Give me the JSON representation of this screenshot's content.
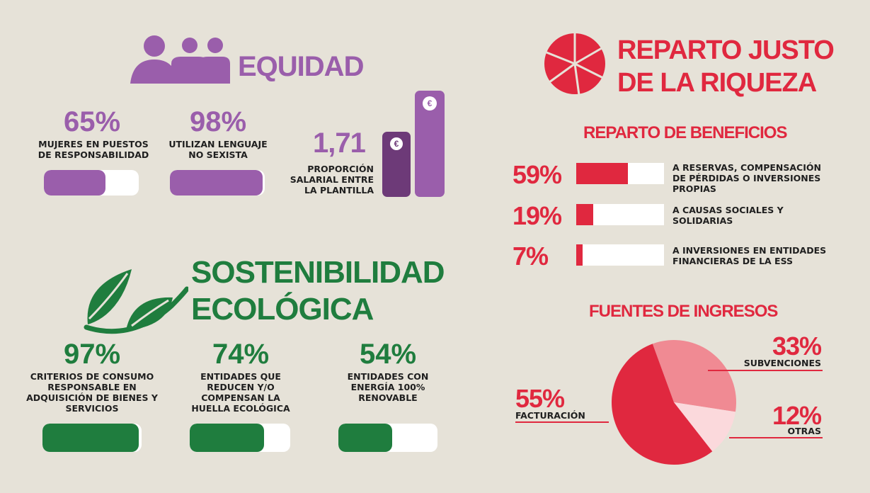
{
  "colors": {
    "equidad": "#9a5eab",
    "equidad_dark": "#6d3a78",
    "sostenibilidad": "#1f7d3e",
    "reparto": "#e0283f",
    "reparto_mid": "#f08a93",
    "reparto_light": "#fbd9dc",
    "background": "#e6e2d8"
  },
  "equidad": {
    "title": "EQUIDAD",
    "icon": "people-icon",
    "stats": [
      {
        "value": "65%",
        "label": "MUJERES EN  PUESTOS DE RESPONSABILIDAD",
        "fraction": 0.65
      },
      {
        "value": "98%",
        "label": "UTILIZAN LENGUAJE NO SEXISTA",
        "fraction": 0.98
      }
    ],
    "ratio": {
      "value": "1,71",
      "label": "PROPORCIÓN SALARIAL ENTRE LA PLANTILLA",
      "currency_symbol": "€",
      "icon": "euro-coin-icon"
    }
  },
  "sostenibilidad": {
    "title_line1": "SOSTENIBILIDAD",
    "title_line2": "ECOLÓGICA",
    "icon": "leaf-icon",
    "stats": [
      {
        "value": "97%",
        "label": "CRITERIOS DE CONSUMO RESPONSABLE EN ADQUISICIÓN DE BIENES Y SERVICIOS",
        "fraction": 0.97
      },
      {
        "value": "74%",
        "label": "ENTIDADES QUE REDUCEN Y/O COMPENSAN LA HUELLA ECOLÓGICA",
        "fraction": 0.74
      },
      {
        "value": "54%",
        "label": "ENTIDADES CON ENERGÍA 100% RENOVABLE",
        "fraction": 0.54
      }
    ]
  },
  "reparto": {
    "title_line1": "REPARTO JUSTO",
    "title_line2": "DE LA RIQUEZA",
    "icon": "pie-slices-icon",
    "beneficios": {
      "title": "REPARTO DE BENEFICIOS",
      "items": [
        {
          "value": "59%",
          "label": "A RESERVAS, COMPENSACIÓN DE PÉRDIDAS O INVERSIONES PROPIAS",
          "fraction": 0.59
        },
        {
          "value": "19%",
          "label": "A CAUSAS SOCIALES Y SOLIDARIAS",
          "fraction": 0.19
        },
        {
          "value": "7%",
          "label": "A INVERSIONES EN ENTIDADES FINANCIERAS DE LA ESS",
          "fraction": 0.07
        }
      ]
    },
    "ingresos": {
      "title": "FUENTES DE INGRESOS",
      "slices": [
        {
          "value": "33%",
          "label": "SUBVENCIONES",
          "fraction": 0.33
        },
        {
          "value": "12%",
          "label": "OTRAS",
          "fraction": 0.12
        },
        {
          "value": "55%",
          "label": "FACTURACIÓN",
          "fraction": 0.55
        }
      ]
    }
  }
}
